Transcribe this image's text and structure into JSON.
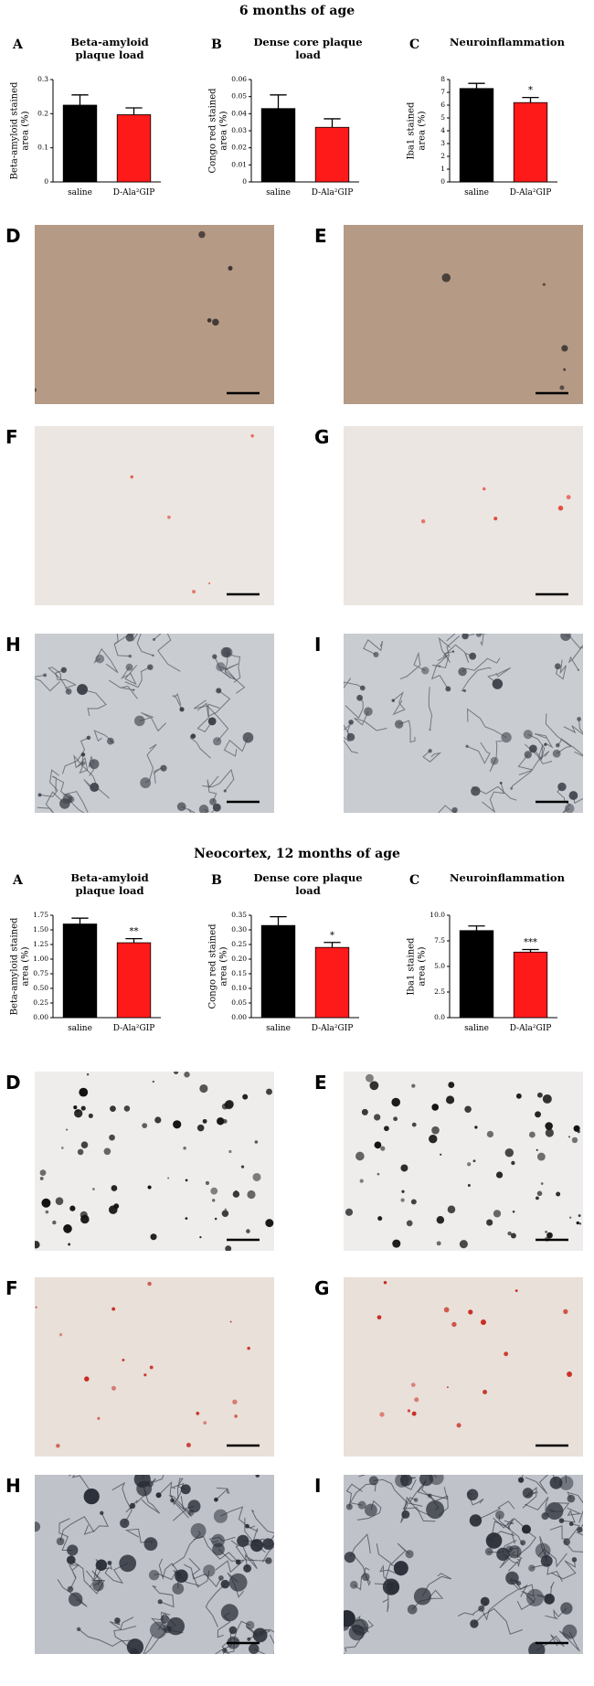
{
  "sections": [
    {
      "title": "6 months of age",
      "panels": [
        "D",
        "E",
        "F",
        "G",
        "H",
        "I"
      ]
    },
    {
      "title": "Neocortex, 12 months of age",
      "panels": [
        "D",
        "E",
        "F",
        "G",
        "H",
        "I"
      ]
    }
  ],
  "chart_data": [
    {
      "type": "bar",
      "panel": "A",
      "title": "Beta-amyloid plaque load",
      "ylabel": [
        "Beta-amyloid stained",
        "area (%)"
      ],
      "categories": [
        "saline",
        "D-Ala²GIP"
      ],
      "values": [
        0.225,
        0.197
      ],
      "errors": [
        0.03,
        0.02
      ],
      "colors": [
        "#000000",
        "#ff1a1a"
      ],
      "significance": [
        null,
        null
      ],
      "ylim": [
        0,
        0.3
      ],
      "yticks": [
        0,
        0.1,
        0.2,
        0.3
      ]
    },
    {
      "type": "bar",
      "panel": "B",
      "title": "Dense core plaque load",
      "ylabel": [
        "Congo red stained",
        "area (%)"
      ],
      "categories": [
        "saline",
        "D-Ala²GIP"
      ],
      "values": [
        0.043,
        0.032
      ],
      "errors": [
        0.008,
        0.005
      ],
      "colors": [
        "#000000",
        "#ff1a1a"
      ],
      "significance": [
        null,
        null
      ],
      "ylim": [
        0,
        0.06
      ],
      "yticks": [
        0,
        0.01,
        0.02,
        0.03,
        0.04,
        0.05,
        0.06
      ]
    },
    {
      "type": "bar",
      "panel": "C",
      "title": "Neuroinflammation",
      "ylabel": [
        "Iba1 stained",
        "area (%)"
      ],
      "categories": [
        "saline",
        "D-Ala²GIP"
      ],
      "values": [
        7.3,
        6.2
      ],
      "errors": [
        0.4,
        0.4
      ],
      "colors": [
        "#000000",
        "#ff1a1a"
      ],
      "significance": [
        null,
        "*"
      ],
      "ylim": [
        0,
        8
      ],
      "yticks": [
        0,
        1,
        2,
        3,
        4,
        5,
        6,
        7,
        8
      ]
    },
    {
      "type": "bar",
      "panel": "A",
      "title": "Beta-amyloid plaque load",
      "ylabel": [
        "Beta-amyloid stained",
        "area (%)"
      ],
      "categories": [
        "saline",
        "D-Ala²GIP"
      ],
      "values": [
        1.6,
        1.28
      ],
      "errors": [
        0.1,
        0.07
      ],
      "colors": [
        "#000000",
        "#ff1a1a"
      ],
      "significance": [
        null,
        "**"
      ],
      "ylim": [
        0,
        1.75
      ],
      "yticks": [
        {
          "value": 0,
          "label": "0.00"
        },
        0.25,
        {
          "value": 0.5,
          "label": "0.50"
        },
        0.75,
        {
          "value": 1,
          "label": "1.00"
        },
        1.25,
        {
          "value": 1.5,
          "label": "1.50"
        },
        1.75
      ]
    },
    {
      "type": "bar",
      "panel": "B",
      "title": "Dense core plaque load",
      "ylabel": [
        "Congo red stained",
        "area (%)"
      ],
      "categories": [
        "saline",
        "D-Ala²GIP"
      ],
      "values": [
        0.315,
        0.24
      ],
      "errors": [
        0.03,
        0.017
      ],
      "colors": [
        "#000000",
        "#ff1a1a"
      ],
      "significance": [
        null,
        "*"
      ],
      "ylim": [
        0,
        0.35
      ],
      "yticks": [
        {
          "value": 0,
          "label": "0.00"
        },
        0.05,
        {
          "value": 0.1,
          "label": "0.10"
        },
        0.15,
        {
          "value": 0.2,
          "label": "0.20"
        },
        0.25,
        {
          "value": 0.3,
          "label": "0.30"
        },
        0.35
      ]
    },
    {
      "type": "bar",
      "panel": "C",
      "title": "Neuroinflammation",
      "ylabel": [
        "Iba1 stained",
        "area (%)"
      ],
      "categories": [
        "saline",
        "D-Ala²GIP"
      ],
      "values": [
        8.5,
        6.4
      ],
      "errors": [
        0.45,
        0.25
      ],
      "colors": [
        "#000000",
        "#ff1a1a"
      ],
      "significance": [
        null,
        "***"
      ],
      "ylim": [
        0,
        10
      ],
      "yticks": [
        {
          "value": 0,
          "label": "0.0"
        },
        2.5,
        {
          "value": 5,
          "label": "5.0"
        },
        7.5,
        {
          "value": 10,
          "label": "10.0"
        }
      ]
    }
  ]
}
